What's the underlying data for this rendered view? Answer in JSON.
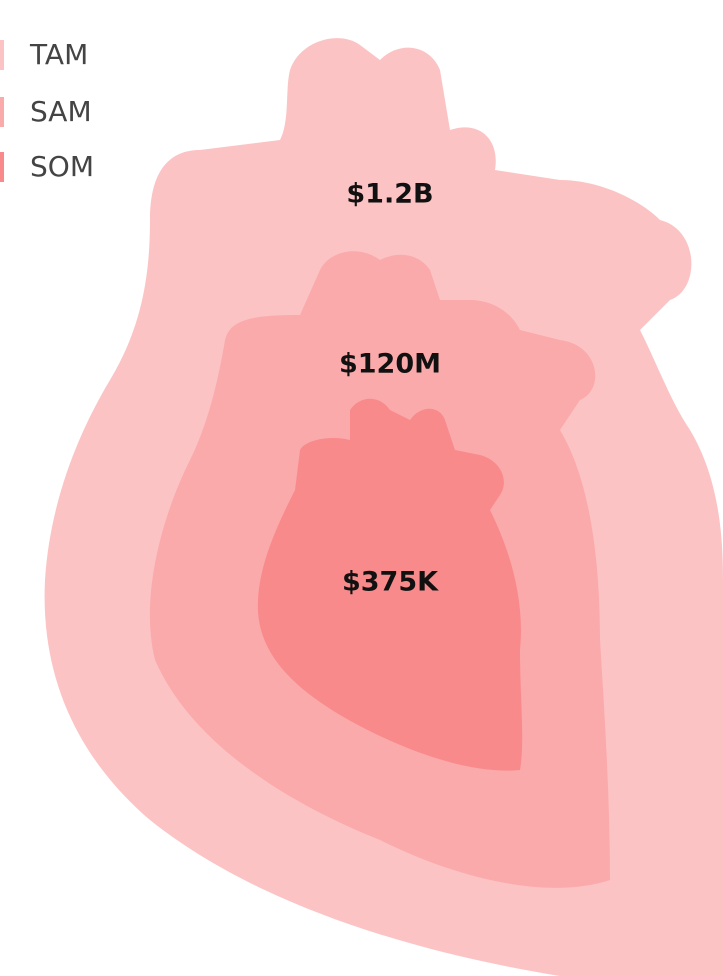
{
  "levels": [
    {
      "name": "TAM",
      "label": "$1.2B",
      "color": "#fcc3c4"
    },
    {
      "name": "SAM",
      "label": "$120M",
      "color": "#fbaaab"
    },
    {
      "name": "SOM",
      "label": "$375K",
      "color": "#f98a8b"
    }
  ]
}
